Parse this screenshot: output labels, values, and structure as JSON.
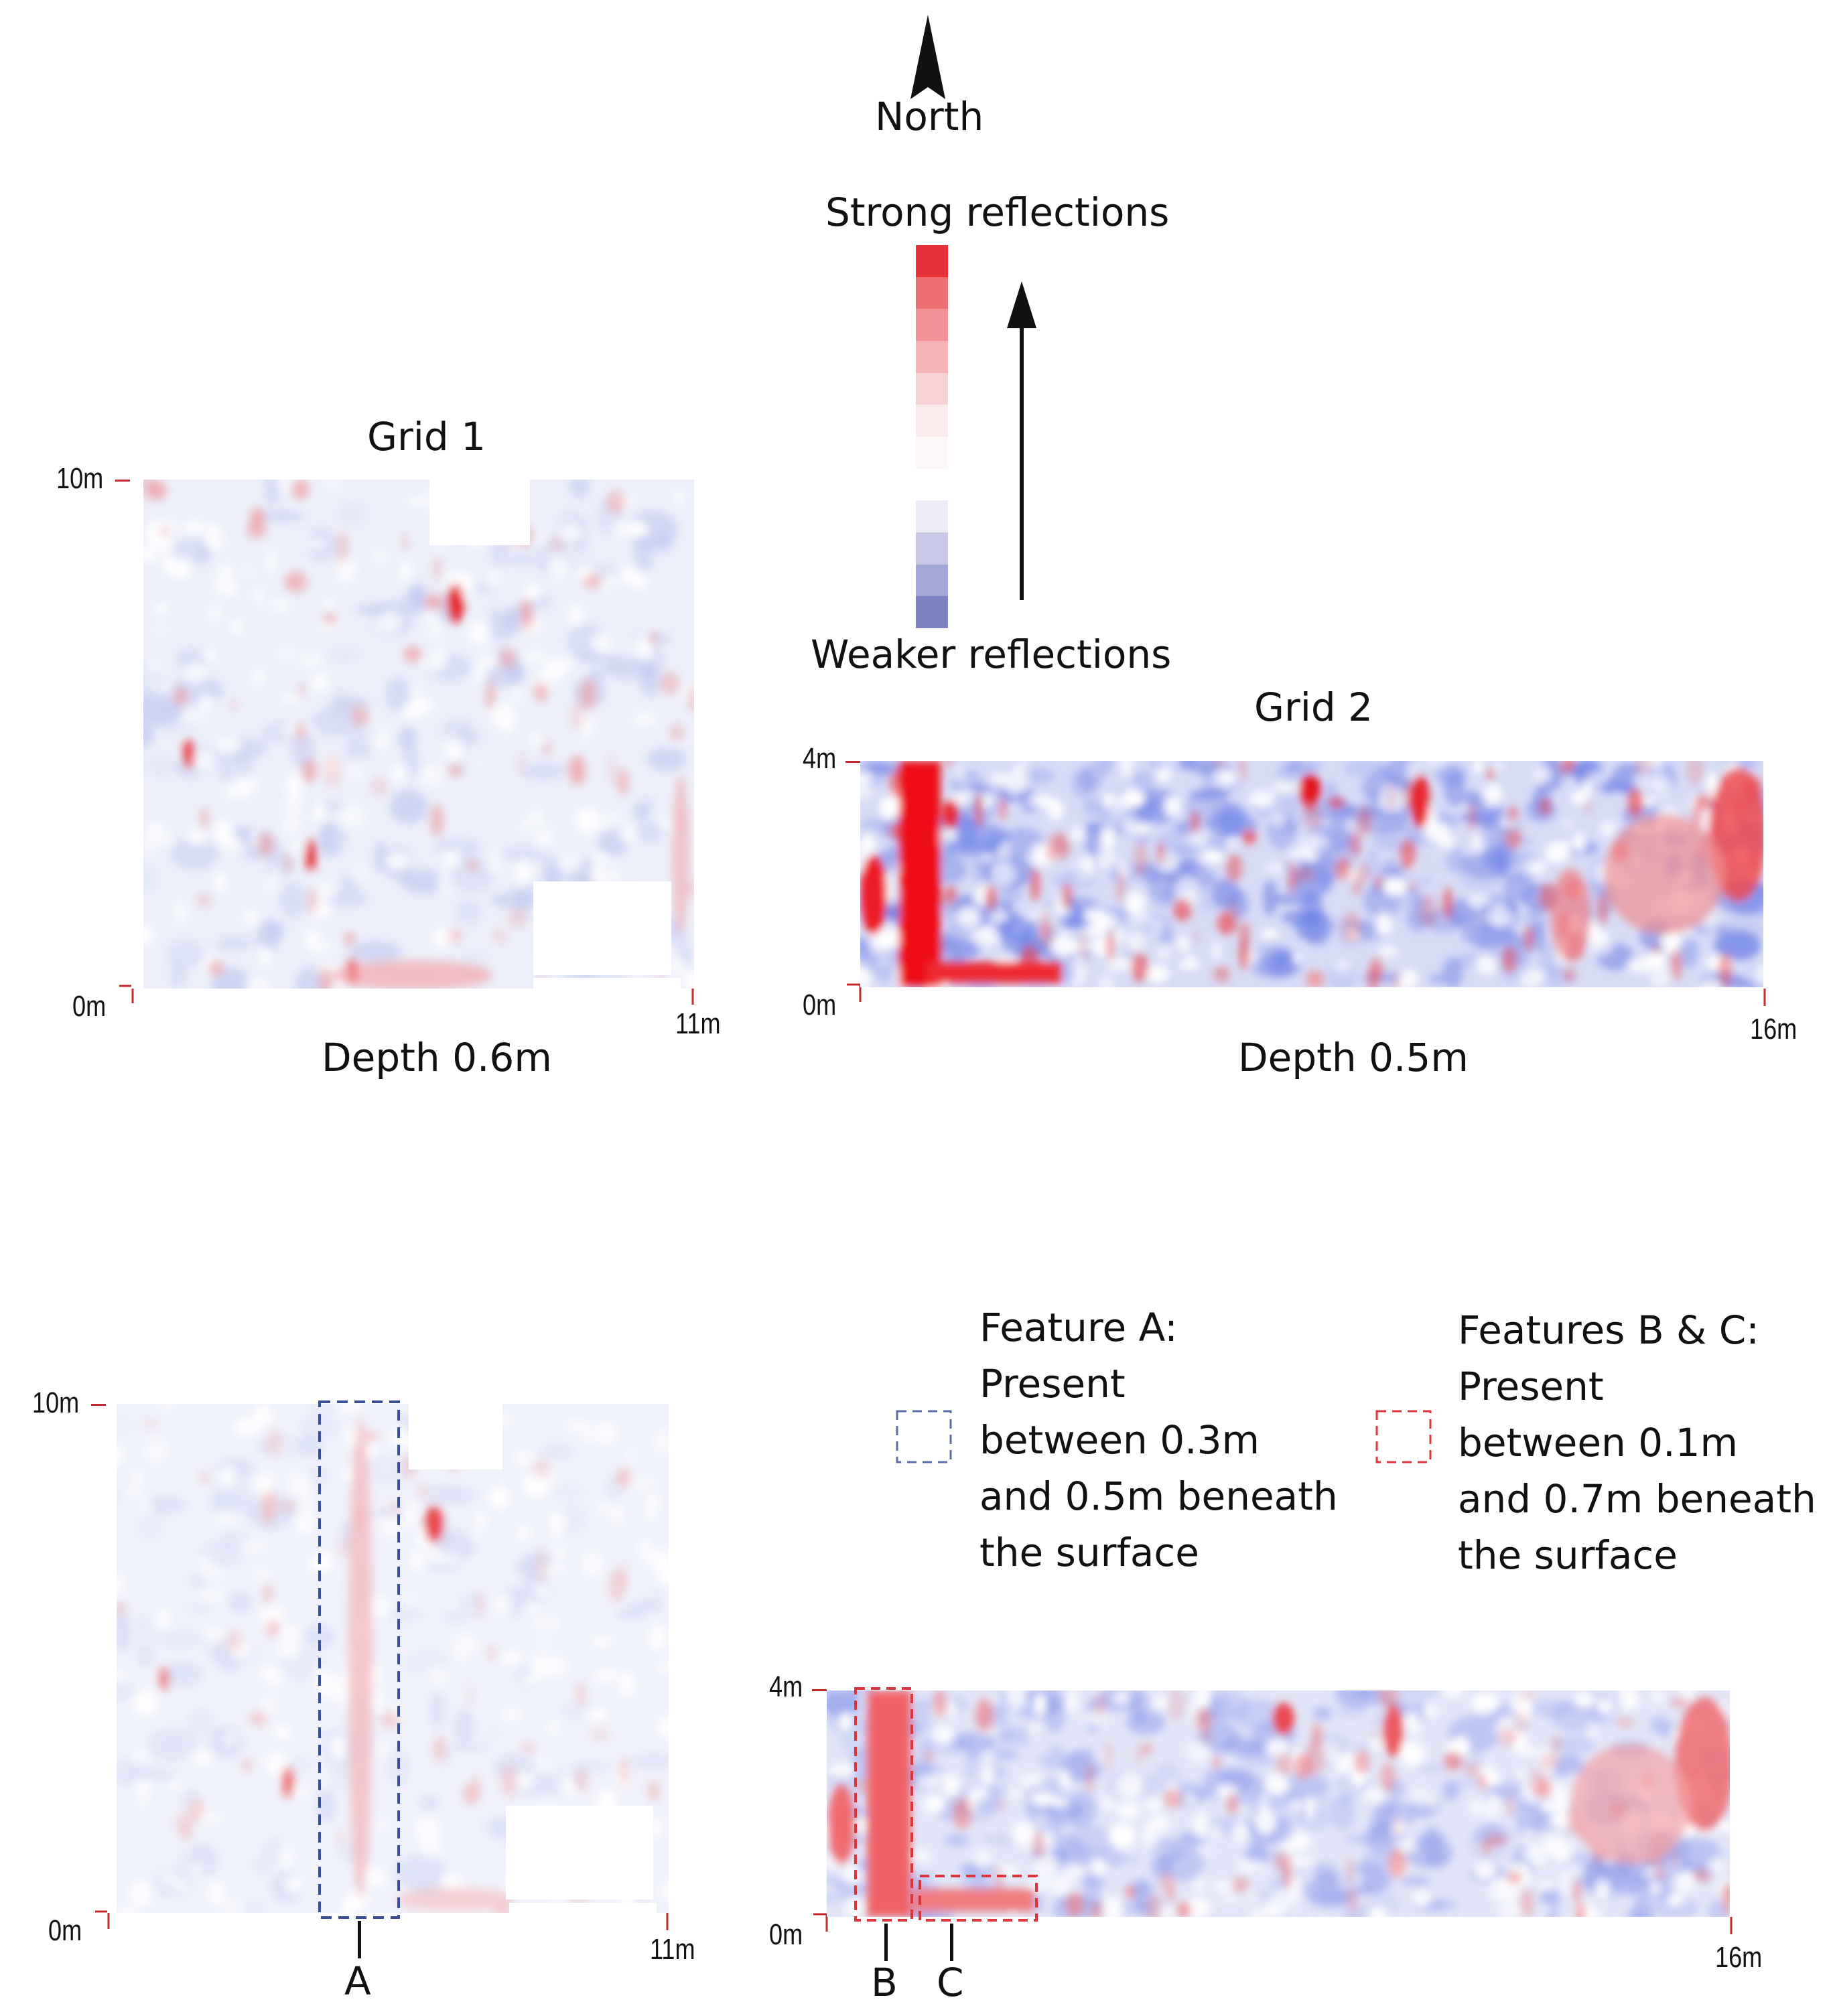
{
  "north": {
    "label": "North"
  },
  "color_scale": {
    "top_label": "Strong reflections",
    "bottom_label": "Weaker reflections",
    "swatches": [
      "#e8323a",
      "#ee7075",
      "#f29296",
      "#f5b3b6",
      "#f8d3d5",
      "#fbeaeb",
      "#fdf6f7",
      "#ffffff",
      "#ebebf5",
      "#c8c8e6",
      "#a4a8d6",
      "#7d82c2"
    ]
  },
  "grid1": {
    "title": "Grid 1",
    "y_max_label": "10m",
    "origin_label": "0m",
    "x_max_label": "11m",
    "depth_label": "Depth 0.6m"
  },
  "grid2": {
    "title": "Grid 2",
    "y_max_label": "4m",
    "origin_label": "0m",
    "x_max_label": "16m",
    "depth_label": "Depth 0.5m"
  },
  "grid3": {
    "y_max_label": "10m",
    "origin_label": "0m",
    "x_max_label": "11m",
    "marker_a": "A"
  },
  "grid4": {
    "y_max_label": "4m",
    "origin_label": "0m",
    "x_max_label": "16m",
    "marker_b": "B",
    "marker_c": "C"
  },
  "legend": {
    "feature_a": {
      "lines": [
        "Feature A:",
        "Present",
        "between 0.3m",
        "and 0.5m beneath",
        "the surface"
      ],
      "color": "#5a6fa8"
    },
    "features_bc": {
      "lines": [
        "Features B & C:",
        "Present",
        "between 0.1m",
        "and 0.7m beneath",
        "the surface"
      ],
      "color": "#d9363e"
    }
  },
  "colors": {
    "axis_tick": "#c0282c",
    "blue_box": "#3a4f9a",
    "red_box": "#d9363e"
  }
}
